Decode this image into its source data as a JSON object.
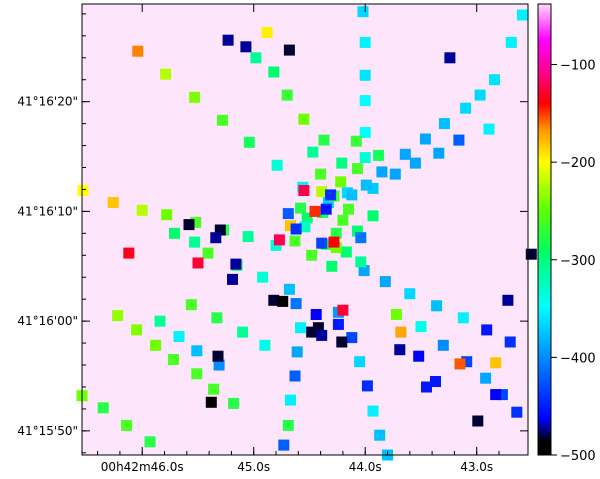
{
  "chart_data": {
    "type": "scatter",
    "title": "",
    "xlabel": "",
    "ylabel": "",
    "background_color": "#fde6fb",
    "marker": "square",
    "x_ticks": [
      {
        "label": "00h42m46.0s",
        "value": 46.0
      },
      {
        "label": "45.0s",
        "value": 45.0
      },
      {
        "label": "44.0s",
        "value": 44.0
      },
      {
        "label": "43.0s",
        "value": 43.0
      }
    ],
    "y_ticks": [
      {
        "label": "41°15'50\"",
        "value": 50
      },
      {
        "label": "41°16'00\"",
        "value": 60
      },
      {
        "label": "41°16'10\"",
        "value": 70
      },
      {
        "label": "41°16'20\"",
        "value": 80
      }
    ],
    "xlim": [
      46.54,
      42.54
    ],
    "ylim": [
      47.8,
      88.9
    ],
    "colorbar": {
      "ticks": [
        -100,
        -200,
        -300,
        -400,
        -500
      ],
      "range": [
        -500,
        -38
      ]
    },
    "series": [
      {
        "points": [
          [
            46.04,
            84.6,
            -210
          ],
          [
            45.79,
            82.5,
            -270
          ],
          [
            45.53,
            80.4,
            -285
          ],
          [
            45.28,
            78.3,
            -300
          ],
          [
            45.04,
            76.3,
            -315
          ],
          [
            44.79,
            74.2,
            -345
          ],
          [
            44.56,
            72.2,
            -360
          ],
          [
            46.53,
            71.9,
            -250
          ],
          [
            46.26,
            70.8,
            -230
          ],
          [
            46.0,
            70.1,
            -270
          ],
          [
            45.78,
            69.7,
            -290
          ],
          [
            45.52,
            69.0,
            -300
          ],
          [
            45.27,
            68.3,
            -310
          ],
          [
            45.05,
            67.7,
            -330
          ],
          [
            44.8,
            66.9,
            -345
          ],
          [
            45.41,
            66.2,
            -300
          ],
          [
            45.15,
            65.1,
            -320
          ],
          [
            44.92,
            64.0,
            -345
          ],
          [
            44.68,
            62.9,
            -380
          ],
          [
            45.71,
            68.0,
            -320
          ],
          [
            45.53,
            67.2,
            -330
          ],
          [
            45.56,
            61.5,
            -300
          ],
          [
            45.33,
            60.3,
            -310
          ],
          [
            45.1,
            59.0,
            -330
          ],
          [
            44.9,
            57.8,
            -350
          ],
          [
            46.22,
            60.5,
            -280
          ],
          [
            46.05,
            59.2,
            -285
          ],
          [
            45.88,
            57.8,
            -290
          ],
          [
            45.72,
            56.5,
            -300
          ],
          [
            45.51,
            55.2,
            -300
          ],
          [
            45.36,
            53.8,
            -300
          ],
          [
            45.18,
            52.5,
            -310
          ],
          [
            45.84,
            60.0,
            -330
          ],
          [
            45.67,
            58.6,
            -360
          ],
          [
            45.51,
            57.3,
            -380
          ],
          [
            45.31,
            56.0,
            -400
          ],
          [
            46.54,
            53.2,
            -290
          ],
          [
            46.35,
            52.1,
            -310
          ],
          [
            46.14,
            50.5,
            -300
          ],
          [
            45.93,
            49.0,
            -310
          ],
          [
            44.58,
            59.4,
            -360
          ],
          [
            44.61,
            57.2,
            -390
          ],
          [
            44.63,
            55.0,
            -420
          ],
          [
            44.67,
            52.8,
            -360
          ],
          [
            44.69,
            50.5,
            -310
          ],
          [
            44.73,
            48.7,
            -420
          ],
          [
            44.62,
            61.6,
            -410
          ],
          [
            44.24,
            60.8,
            -395
          ],
          [
            44.12,
            58.5,
            -430
          ],
          [
            44.05,
            56.3,
            -370
          ],
          [
            43.98,
            54.1,
            -440
          ],
          [
            43.93,
            51.8,
            -360
          ],
          [
            43.87,
            49.6,
            -380
          ],
          [
            43.8,
            47.8,
            -380
          ],
          [
            44.01,
            64.6,
            -390
          ],
          [
            43.82,
            63.6,
            -390
          ],
          [
            43.6,
            62.5,
            -370
          ],
          [
            43.36,
            61.4,
            -380
          ],
          [
            43.12,
            60.3,
            -360
          ],
          [
            42.91,
            59.2,
            -450
          ],
          [
            42.7,
            58.1,
            -440
          ],
          [
            43.72,
            60.6,
            -290
          ],
          [
            43.5,
            59.5,
            -350
          ],
          [
            43.3,
            57.8,
            -400
          ],
          [
            43.09,
            56.3,
            -430
          ],
          [
            42.92,
            54.8,
            -390
          ],
          [
            42.77,
            53.3,
            -430
          ],
          [
            42.64,
            51.7,
            -440
          ],
          [
            44.33,
            70.8,
            -375
          ],
          [
            44.16,
            71.7,
            -370
          ],
          [
            43.93,
            72.1,
            -375
          ],
          [
            43.73,
            73.4,
            -390
          ],
          [
            43.55,
            74.4,
            -390
          ],
          [
            43.34,
            75.3,
            -390
          ],
          [
            43.16,
            76.5,
            -420
          ],
          [
            42.89,
            77.5,
            -360
          ],
          [
            44.12,
            71.5,
            -380
          ],
          [
            43.99,
            72.4,
            -380
          ],
          [
            43.85,
            73.6,
            -390
          ],
          [
            43.64,
            75.2,
            -390
          ],
          [
            43.46,
            76.6,
            -390
          ],
          [
            43.29,
            78.0,
            -380
          ],
          [
            43.1,
            79.4,
            -370
          ],
          [
            42.97,
            80.6,
            -370
          ],
          [
            42.84,
            82.0,
            -365
          ],
          [
            42.69,
            85.4,
            -360
          ],
          [
            42.59,
            87.9,
            -360
          ],
          [
            44.0,
            74.9,
            -345
          ],
          [
            44.0,
            77.2,
            -355
          ],
          [
            44.0,
            80.1,
            -355
          ],
          [
            44.0,
            82.4,
            -365
          ],
          [
            44.0,
            85.4,
            -360
          ],
          [
            44.02,
            88.2,
            -370
          ],
          [
            44.21,
            74.4,
            -325
          ],
          [
            44.37,
            76.5,
            -310
          ],
          [
            44.55,
            78.4,
            -290
          ],
          [
            44.7,
            80.6,
            -305
          ],
          [
            44.82,
            82.7,
            -320
          ],
          [
            44.88,
            86.3,
            -245
          ],
          [
            44.98,
            84.0,
            -330
          ],
          [
            44.47,
            75.4,
            -330
          ],
          [
            44.4,
            73.4,
            -300
          ],
          [
            44.28,
            71.4,
            -300
          ],
          [
            44.38,
            69.9,
            -315
          ],
          [
            44.2,
            69.2,
            -300
          ],
          [
            44.07,
            68.2,
            -320
          ],
          [
            44.26,
            68.0,
            -310
          ],
          [
            44.35,
            67.0,
            -310
          ],
          [
            44.17,
            66.3,
            -320
          ],
          [
            44.04,
            65.4,
            -330
          ],
          [
            44.3,
            65.0,
            -320
          ],
          [
            44.52,
            69.4,
            -320
          ],
          [
            44.63,
            67.3,
            -300
          ],
          [
            44.48,
            66.0,
            -300
          ],
          [
            44.15,
            70.2,
            -300
          ],
          [
            43.93,
            69.6,
            -320
          ],
          [
            44.22,
            72.7,
            -290
          ],
          [
            44.39,
            71.8,
            -270
          ],
          [
            44.58,
            70.3,
            -310
          ],
          [
            44.07,
            73.9,
            -300
          ],
          [
            44.08,
            76.4,
            -305
          ],
          [
            43.88,
            75.1,
            -315
          ],
          [
            44.26,
            66.7,
            -290
          ],
          [
            44.54,
            68.6,
            -340
          ],
          [
            44.55,
            71.9,
            -150
          ],
          [
            44.45,
            70.0,
            -190
          ],
          [
            44.67,
            68.7,
            -230
          ],
          [
            45.5,
            65.3,
            -160
          ],
          [
            44.69,
            69.8,
            -420
          ],
          [
            44.62,
            68.4,
            -440
          ],
          [
            44.04,
            67.6,
            -410
          ],
          [
            44.39,
            67.1,
            -430
          ],
          [
            44.35,
            70.2,
            -450
          ],
          [
            44.31,
            71.5,
            -440
          ],
          [
            45.58,
            68.8,
            -480
          ],
          [
            45.3,
            68.3,
            -480
          ],
          [
            45.34,
            67.6,
            -470
          ],
          [
            45.16,
            65.2,
            -470
          ],
          [
            45.19,
            63.8,
            -470
          ],
          [
            44.82,
            61.9,
            -480
          ],
          [
            44.44,
            60.6,
            -460
          ],
          [
            44.48,
            59.0,
            -480
          ],
          [
            44.42,
            59.4,
            -480
          ],
          [
            44.39,
            58.7,
            -470
          ],
          [
            44.21,
            58.1,
            -480
          ],
          [
            44.24,
            59.7,
            -450
          ],
          [
            45.32,
            56.8,
            -480
          ],
          [
            44.74,
            61.8,
            -490
          ],
          [
            42.51,
            66.1,
            -480
          ],
          [
            42.72,
            61.9,
            -470
          ],
          [
            42.83,
            53.3,
            -460
          ],
          [
            42.99,
            50.9,
            -480
          ],
          [
            43.45,
            54.0,
            -450
          ],
          [
            43.37,
            54.5,
            -450
          ],
          [
            45.38,
            52.6,
            -500
          ],
          [
            43.69,
            57.4,
            -470
          ],
          [
            43.52,
            56.8,
            -460
          ],
          [
            44.68,
            84.7,
            -480
          ],
          [
            45.07,
            85.0,
            -470
          ],
          [
            45.23,
            85.6,
            -470
          ],
          [
            43.24,
            84.0,
            -470
          ],
          [
            43.15,
            56.1,
            -200
          ],
          [
            42.83,
            56.2,
            -230
          ],
          [
            43.68,
            59.0,
            -220
          ],
          [
            46.12,
            66.2,
            -170
          ],
          [
            44.2,
            61.0,
            -160
          ],
          [
            44.77,
            67.4,
            -150
          ],
          [
            44.28,
            67.2,
            -180
          ]
        ]
      }
    ]
  }
}
